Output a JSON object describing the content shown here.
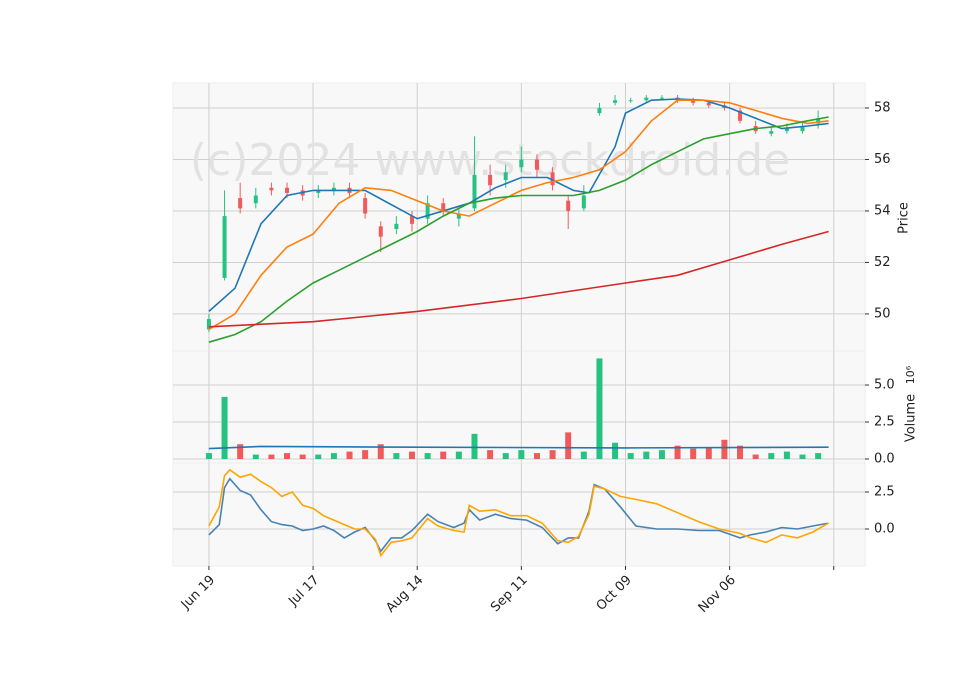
{
  "watermark": "(c)2024 www.stockdroid.de",
  "chart_data": [
    {
      "type": "candlestick",
      "ylabel": "Price",
      "ylim": [
        48.56,
        58.97
      ],
      "yticks": [
        50,
        52,
        54,
        56,
        58
      ],
      "grid": true,
      "up_color": "#26c281",
      "down_color": "#f05a5a",
      "x": [
        0,
        3,
        6,
        9,
        12,
        15,
        18,
        21,
        24,
        27,
        30,
        33,
        36,
        39,
        42,
        45,
        48,
        51,
        54,
        57,
        60,
        63,
        66,
        69,
        72,
        75,
        78,
        81,
        84,
        87,
        90,
        93,
        96,
        99,
        102,
        105,
        108,
        111,
        114,
        117
      ],
      "open": [
        49.4,
        51.4,
        54.5,
        54.3,
        54.9,
        54.9,
        54.8,
        54.7,
        54.8,
        54.9,
        54.5,
        53.4,
        53.3,
        53.8,
        53.7,
        54.3,
        53.7,
        54.1,
        55.4,
        55.2,
        55.7,
        56.0,
        55.5,
        54.4,
        54.1,
        57.8,
        58.2,
        58.3,
        58.3,
        58.4,
        58.4,
        58.3,
        58.2,
        58.1,
        57.9,
        57.3,
        57.0,
        57.1,
        57.1,
        57.4
      ],
      "high": [
        50.0,
        54.8,
        55.1,
        54.9,
        55.1,
        55.1,
        55.0,
        55.0,
        55.1,
        55.1,
        54.7,
        53.6,
        53.8,
        54.0,
        54.6,
        54.5,
        54.1,
        56.9,
        55.8,
        55.8,
        56.5,
        56.2,
        55.7,
        54.6,
        55.0,
        58.2,
        58.5,
        58.4,
        58.5,
        58.5,
        58.5,
        58.4,
        58.3,
        58.2,
        58.0,
        57.5,
        57.3,
        57.4,
        57.5,
        57.9
      ],
      "low": [
        49.3,
        51.3,
        53.9,
        54.1,
        54.6,
        54.5,
        54.4,
        54.5,
        54.6,
        54.5,
        53.7,
        52.4,
        53.1,
        53.2,
        53.5,
        53.8,
        53.4,
        54.0,
        54.6,
        54.9,
        55.5,
        55.3,
        54.8,
        53.3,
        54.0,
        57.7,
        58.1,
        58.2,
        58.2,
        58.3,
        58.2,
        58.1,
        58.0,
        57.9,
        57.4,
        57.0,
        56.9,
        57.0,
        57.0,
        57.2
      ],
      "close": [
        49.8,
        53.8,
        54.1,
        54.6,
        54.8,
        54.7,
        54.6,
        54.8,
        54.9,
        54.7,
        53.9,
        53.0,
        53.5,
        53.5,
        54.3,
        54.0,
        53.9,
        55.4,
        55.0,
        55.5,
        56.0,
        55.6,
        55.0,
        54.0,
        54.6,
        58.0,
        58.3,
        58.3,
        58.4,
        58.4,
        58.3,
        58.2,
        58.1,
        58.0,
        57.5,
        57.1,
        57.1,
        57.2,
        57.3,
        57.6
      ],
      "series": [
        {
          "color": "#1f77b4",
          "x": [
            0,
            5,
            10,
            15,
            20,
            30,
            40,
            50,
            55,
            60,
            65,
            70,
            73,
            78,
            80,
            85,
            90,
            95,
            100,
            105,
            110,
            115,
            119
          ],
          "values": [
            50.1,
            51.0,
            53.5,
            54.6,
            54.8,
            54.8,
            53.7,
            54.3,
            54.9,
            55.3,
            55.3,
            54.8,
            54.7,
            56.5,
            57.8,
            58.3,
            58.35,
            58.3,
            58.0,
            57.6,
            57.2,
            57.3,
            57.4
          ]
        },
        {
          "color": "#ff7f0e",
          "x": [
            0,
            5,
            10,
            15,
            20,
            25,
            30,
            35,
            40,
            45,
            50,
            55,
            60,
            65,
            70,
            75,
            80,
            85,
            90,
            95,
            100,
            105,
            110,
            115,
            119
          ],
          "values": [
            49.4,
            50.0,
            51.5,
            52.6,
            53.1,
            54.3,
            54.9,
            54.8,
            54.4,
            54.0,
            53.8,
            54.3,
            54.8,
            55.1,
            55.3,
            55.6,
            56.3,
            57.5,
            58.3,
            58.3,
            58.2,
            57.9,
            57.6,
            57.4,
            57.5
          ]
        },
        {
          "color": "#2ca02c",
          "x": [
            0,
            5,
            10,
            15,
            20,
            25,
            30,
            35,
            40,
            45,
            50,
            55,
            60,
            65,
            70,
            75,
            80,
            85,
            90,
            95,
            100,
            105,
            110,
            115,
            119
          ],
          "values": [
            48.9,
            49.2,
            49.7,
            50.5,
            51.2,
            51.7,
            52.2,
            52.7,
            53.2,
            53.8,
            54.3,
            54.5,
            54.6,
            54.6,
            54.6,
            54.8,
            55.2,
            55.8,
            56.3,
            56.8,
            57.0,
            57.2,
            57.3,
            57.5,
            57.65
          ]
        },
        {
          "color": "#d62728",
          "x": [
            0,
            20,
            40,
            60,
            80,
            90,
            100,
            110,
            119
          ],
          "values": [
            49.5,
            49.7,
            50.1,
            50.6,
            51.2,
            51.5,
            52.1,
            52.7,
            53.2
          ]
        }
      ]
    },
    {
      "type": "bar",
      "ylabel": "Volume",
      "scale_label": "10⁶",
      "ylim": [
        -0.27,
        7.3
      ],
      "yticks": [
        {
          "value": 0,
          "label": "0.0"
        },
        {
          "value": 2.5,
          "label": "2.5"
        },
        {
          "value": 5,
          "label": "5.0"
        }
      ],
      "grid": true,
      "up_color": "#26c281",
      "down_color": "#f05a5a",
      "x": [
        0,
        3,
        6,
        9,
        12,
        15,
        18,
        21,
        24,
        27,
        30,
        33,
        36,
        39,
        42,
        45,
        48,
        51,
        54,
        57,
        60,
        63,
        66,
        69,
        72,
        75,
        78,
        81,
        84,
        87,
        90,
        93,
        96,
        99,
        102,
        105,
        108,
        111,
        114,
        117
      ],
      "values": [
        0.4,
        4.2,
        1.0,
        0.3,
        0.3,
        0.4,
        0.3,
        0.3,
        0.4,
        0.5,
        0.6,
        1.0,
        0.4,
        0.5,
        0.4,
        0.5,
        0.5,
        1.7,
        0.6,
        0.4,
        0.6,
        0.4,
        0.6,
        1.8,
        0.5,
        6.8,
        1.1,
        0.4,
        0.5,
        0.6,
        0.9,
        0.7,
        0.8,
        1.3,
        0.9,
        0.3,
        0.4,
        0.5,
        0.3,
        0.4
      ],
      "series": [
        {
          "color": "#1f77b4",
          "x": [
            0,
            10,
            40,
            80,
            119
          ],
          "values": [
            0.7,
            0.85,
            0.8,
            0.75,
            0.8
          ]
        }
      ]
    },
    {
      "type": "line",
      "xlim": [
        -6.9,
        126
      ],
      "xticks": [
        {
          "value": 0,
          "label": "Jun 19"
        },
        {
          "value": 20,
          "label": "Jul 17"
        },
        {
          "value": 40,
          "label": "Aug 14"
        },
        {
          "value": 60,
          "label": "Sep 11"
        },
        {
          "value": 80,
          "label": "Oct 09"
        },
        {
          "value": 100,
          "label": "Nov 06"
        },
        {
          "value": 120,
          "label": null
        }
      ],
      "ylim": [
        -2.5,
        4.46
      ],
      "yticks": [
        {
          "value": 0,
          "label": "0.0"
        },
        {
          "value": 2.5,
          "label": "2.5"
        }
      ],
      "grid": true,
      "series": [
        {
          "color": "#4682b4",
          "x": [
            0,
            2,
            3,
            4,
            6,
            8,
            10,
            12,
            14,
            16,
            18,
            20,
            22,
            24,
            26,
            28,
            30,
            32,
            33,
            35,
            37,
            39,
            42,
            44,
            47,
            49,
            50,
            52,
            55,
            58,
            61,
            64,
            67,
            69,
            71,
            73,
            74,
            76,
            79,
            82,
            86,
            90,
            94,
            98,
            102,
            104,
            107,
            110,
            113,
            116,
            119
          ],
          "values": [
            -0.4,
            0.3,
            2.8,
            3.4,
            2.6,
            2.3,
            1.3,
            0.5,
            0.3,
            0.2,
            -0.1,
            0.0,
            0.2,
            -0.1,
            -0.6,
            -0.2,
            0.1,
            -0.8,
            -1.5,
            -0.6,
            -0.6,
            -0.1,
            1.0,
            0.5,
            0.1,
            0.4,
            1.3,
            0.6,
            1.0,
            0.7,
            0.6,
            0.1,
            -1.0,
            -0.6,
            -0.6,
            1.2,
            3.0,
            2.7,
            1.5,
            0.2,
            0.0,
            0.0,
            -0.1,
            -0.1,
            -0.6,
            -0.4,
            -0.2,
            0.1,
            0.0,
            0.2,
            0.4
          ]
        },
        {
          "color": "#ffa500",
          "x": [
            0,
            2,
            3,
            4,
            6,
            8,
            10,
            12,
            14,
            16,
            18,
            20,
            22,
            24,
            26,
            28,
            30,
            32,
            33,
            35,
            37,
            39,
            42,
            44,
            47,
            49,
            50,
            52,
            55,
            58,
            61,
            64,
            67,
            69,
            71,
            73,
            74,
            76,
            79,
            82,
            86,
            90,
            94,
            98,
            102,
            104,
            107,
            110,
            113,
            116,
            119
          ],
          "values": [
            0.2,
            1.5,
            3.6,
            4.0,
            3.5,
            3.7,
            3.2,
            2.8,
            2.2,
            2.5,
            1.6,
            1.4,
            0.9,
            0.6,
            0.3,
            0.0,
            0.0,
            -0.7,
            -1.8,
            -0.9,
            -0.8,
            -0.6,
            0.7,
            0.2,
            -0.1,
            -0.2,
            1.6,
            1.2,
            1.3,
            0.9,
            0.9,
            0.4,
            -0.8,
            -0.9,
            -0.5,
            1.0,
            2.9,
            2.7,
            2.2,
            2.0,
            1.7,
            1.1,
            0.5,
            0.0,
            -0.3,
            -0.6,
            -0.9,
            -0.4,
            -0.6,
            -0.2,
            0.4
          ]
        }
      ]
    }
  ]
}
